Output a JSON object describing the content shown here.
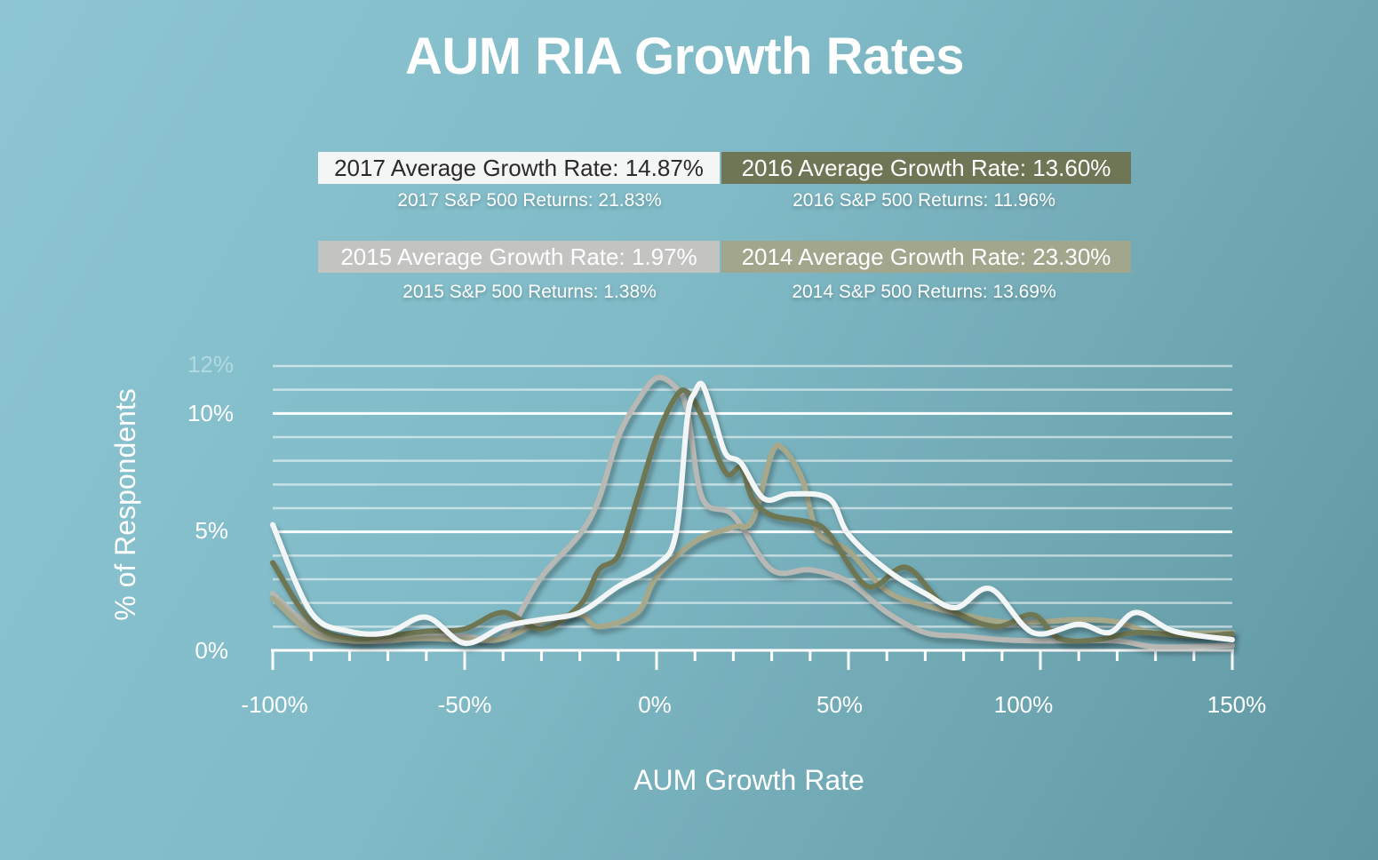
{
  "chart_data": {
    "type": "line",
    "title": "AUM RIA Growth Rates",
    "xlabel": "AUM Growth Rate",
    "ylabel": "% of Respondents",
    "xlim": [
      -100,
      150
    ],
    "ylim": [
      0,
      12
    ],
    "x_ticks": [
      "-100%",
      "-50%",
      "0%",
      "50%",
      "100%",
      "150%"
    ],
    "y_ticks": [
      "0%",
      "5%",
      "10%",
      "12%"
    ],
    "grid": true,
    "legend": [
      {
        "label": "2017 Average Growth Rate: 14.87%",
        "sub": "2017 S&P 500 Returns: 21.83%",
        "color": "#f4f6f5"
      },
      {
        "label": "2016 Average Growth Rate: 13.60%",
        "sub": "2016 S&P 500 Returns: 11.96%",
        "color": "#6e7656"
      },
      {
        "label": "2015 Average Growth Rate: 1.97%",
        "sub": "2015 S&P 500 Returns: 1.38%",
        "color": "#c3c3c1"
      },
      {
        "label": "2014 Average Growth Rate: 23.30%",
        "sub": "2014 S&P 500 Returns: 13.69%",
        "color": "#a2a68c"
      }
    ],
    "series": [
      {
        "name": "2015",
        "color": "#b8b8b5",
        "x": [
          -100,
          -90,
          -80,
          -70,
          -60,
          -50,
          -40,
          -30,
          -20,
          -15,
          -10,
          -5,
          0,
          5,
          8,
          12,
          20,
          30,
          40,
          50,
          60,
          70,
          80,
          90,
          100,
          120,
          130,
          150
        ],
        "y": [
          2.4,
          1.0,
          0.45,
          0.4,
          0.6,
          0.6,
          0.6,
          3.1,
          4.9,
          6.4,
          9.0,
          10.5,
          11.5,
          11.1,
          10.1,
          6.4,
          5.7,
          3.4,
          3.4,
          2.9,
          1.6,
          0.75,
          0.6,
          0.45,
          0.4,
          0.4,
          0.15,
          0.2
        ]
      },
      {
        "name": "2014",
        "color": "#a7a88a",
        "x": [
          -100,
          -90,
          -80,
          -70,
          -60,
          -50,
          -40,
          -30,
          -20,
          -15,
          -5,
          0,
          10,
          20,
          25,
          30,
          33,
          38,
          42,
          50,
          60,
          70,
          80,
          90,
          100,
          110,
          120,
          130,
          150
        ],
        "y": [
          2.2,
          0.75,
          0.4,
          0.45,
          0.5,
          0.45,
          0.5,
          1.2,
          1.5,
          1.0,
          1.6,
          3.1,
          4.6,
          5.2,
          5.5,
          8.3,
          8.5,
          7.2,
          5.0,
          4.2,
          2.5,
          1.9,
          1.5,
          1.2,
          1.2,
          1.3,
          1.2,
          0.75,
          0.75
        ]
      },
      {
        "name": "2016",
        "color": "#6e7653",
        "x": [
          -100,
          -90,
          -80,
          -70,
          -60,
          -50,
          -40,
          -30,
          -20,
          -15,
          -10,
          -5,
          0,
          5,
          8,
          12,
          18,
          22,
          25,
          30,
          40,
          45,
          55,
          65,
          75,
          88,
          98,
          105,
          115,
          125,
          140,
          150
        ],
        "y": [
          3.7,
          1.2,
          0.5,
          0.6,
          0.8,
          0.9,
          1.6,
          0.9,
          1.9,
          3.4,
          4.0,
          6.4,
          9.0,
          10.7,
          10.9,
          9.8,
          7.5,
          7.7,
          6.4,
          5.7,
          5.4,
          4.9,
          2.7,
          3.5,
          1.9,
          1.0,
          1.5,
          0.5,
          0.45,
          0.75,
          0.6,
          0.7
        ]
      },
      {
        "name": "2017",
        "color": "#f2f6f6",
        "x": [
          -100,
          -90,
          -80,
          -70,
          -60,
          -50,
          -40,
          -30,
          -20,
          -10,
          0,
          5,
          8,
          10,
          12,
          15,
          18,
          22,
          28,
          35,
          45,
          50,
          60,
          70,
          78,
          87,
          98,
          110,
          118,
          125,
          135,
          150
        ],
        "y": [
          5.3,
          1.6,
          0.8,
          0.75,
          1.4,
          0.3,
          1.0,
          1.3,
          1.6,
          2.7,
          3.6,
          4.9,
          9.8,
          10.9,
          11.2,
          9.8,
          8.3,
          7.9,
          6.4,
          6.6,
          6.4,
          4.9,
          3.4,
          2.4,
          1.8,
          2.6,
          0.75,
          1.1,
          0.75,
          1.6,
          0.8,
          0.45
        ]
      }
    ]
  }
}
